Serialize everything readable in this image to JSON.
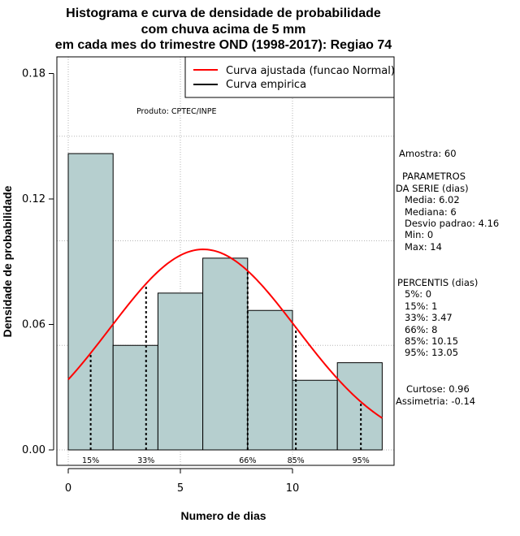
{
  "chart_data": {
    "type": "bar",
    "title": [
      "Histograma e curva de densidade de probabilidade",
      "com chuva acima de 5 mm",
      "em cada mes do trimestre OND (1998-2017): Regiao 74"
    ],
    "xlabel": "Numero de dias",
    "ylabel": "Densidade de probabilidade",
    "xlim": [
      -1,
      15
    ],
    "ylim": [
      -0.007,
      0.188
    ],
    "x_ticks": [
      0,
      5,
      10
    ],
    "y_ticks": [
      0.0,
      0.06,
      0.12,
      0.18
    ],
    "y_tick_labels": [
      "0.00",
      "0.06",
      "0.12",
      "0.18"
    ],
    "grid": true,
    "bins": [
      {
        "x0": 0,
        "x1": 2,
        "density": 0.1417
      },
      {
        "x0": 2,
        "x1": 4,
        "density": 0.05
      },
      {
        "x0": 4,
        "x1": 6,
        "density": 0.075
      },
      {
        "x0": 6,
        "x1": 8,
        "density": 0.0917
      },
      {
        "x0": 8,
        "x1": 10,
        "density": 0.0667
      },
      {
        "x0": 10,
        "x1": 12,
        "density": 0.0333
      },
      {
        "x0": 12,
        "x1": 14,
        "density": 0.0417
      }
    ],
    "bar_color": "#b6cfcf",
    "normal_fit": {
      "mean": 6.02,
      "sd": 4.16,
      "x_range": [
        0,
        14
      ],
      "color": "#ff0000"
    },
    "percentile_lines": [
      {
        "label": "15%",
        "x": 1
      },
      {
        "label": "33%",
        "x": 3.47
      },
      {
        "label": "66%",
        "x": 8
      },
      {
        "label": "85%",
        "x": 10.15
      },
      {
        "label": "95%",
        "x": 13.05
      }
    ],
    "legend": {
      "position": "top-right",
      "entries": [
        {
          "label": "Curva ajustada (funcao Normal)",
          "color": "#ff0000"
        },
        {
          "label": "Curva empirica",
          "color": "#000000"
        }
      ]
    },
    "annotation": "Produto: CPTEC/INPE"
  },
  "side_panel": {
    "sample": "Amostra: 60",
    "params_header": [
      "PARAMETROS",
      "DA SERIE (dias)"
    ],
    "params": [
      "Media: 6.02",
      "Mediana: 6",
      "Desvio padrao: 4.16",
      "Min: 0",
      "Max: 14"
    ],
    "percentis_header": "PERCENTIS (dias)",
    "percentis": [
      "5%: 0",
      "15%: 1",
      "33%: 3.47",
      "66%: 8",
      "85%: 10.15",
      "95%: 13.05"
    ],
    "curtose": "Curtose: 0.96",
    "assimetria": "Assimetria: -0.14"
  }
}
